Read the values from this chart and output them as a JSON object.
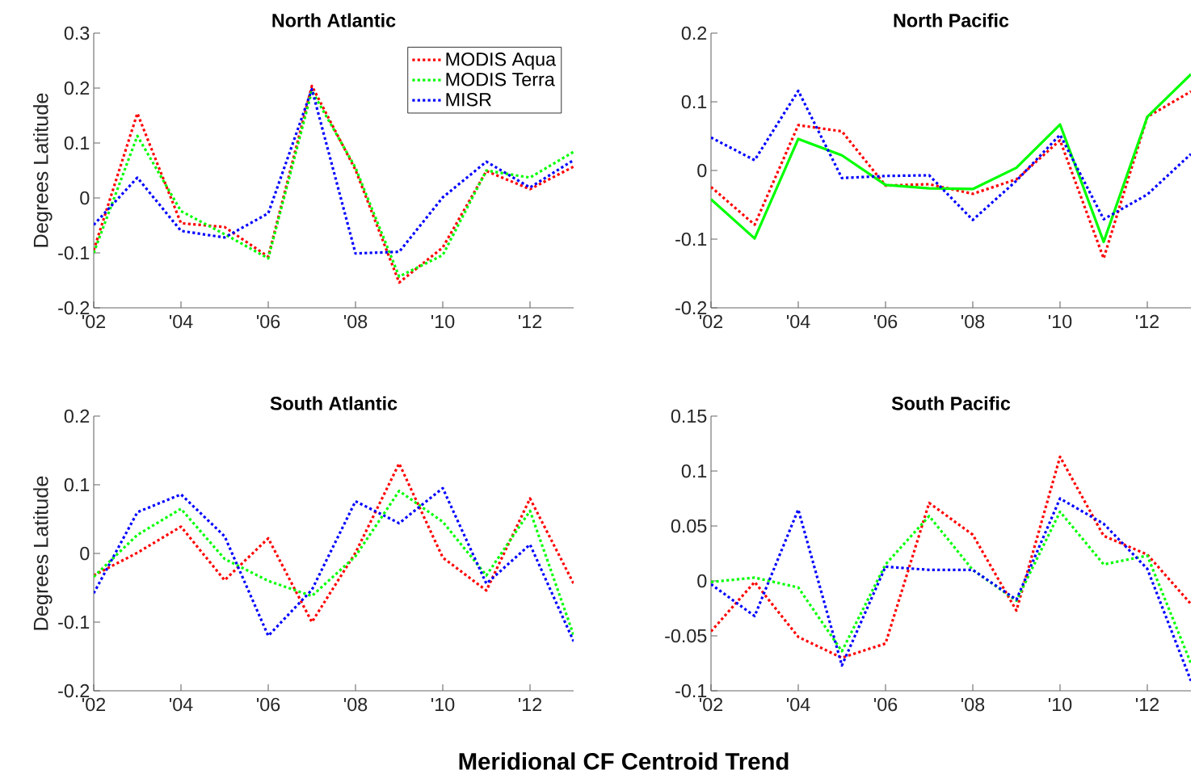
{
  "chart_data": [
    {
      "type": "line",
      "title": "North Atlantic",
      "ylabel": "Degrees Latitude",
      "x": [
        2002,
        2003,
        2004,
        2005,
        2006,
        2007,
        2008,
        2009,
        2010,
        2011,
        2012,
        2013
      ],
      "xlim": [
        2002,
        2013
      ],
      "xticks": [
        {
          "value": 2002,
          "label": "'02"
        },
        {
          "value": 2004,
          "label": "'04"
        },
        {
          "value": 2006,
          "label": "'06"
        },
        {
          "value": 2008,
          "label": "'08"
        },
        {
          "value": 2010,
          "label": "'10"
        },
        {
          "value": 2012,
          "label": "'12"
        }
      ],
      "ylim": [
        -0.2,
        0.3
      ],
      "yticks": [
        -0.2,
        -0.1,
        0,
        0.1,
        0.2,
        0.3
      ],
      "legend": "top right",
      "line_style": "dotted",
      "annotations": [
        "Meridional CF Centroid Trend"
      ],
      "series": [
        {
          "name": "MODIS Aqua",
          "color": "#ff0000",
          "values": [
            -0.095,
            0.154,
            -0.046,
            -0.053,
            -0.107,
            0.204,
            0.051,
            -0.154,
            -0.09,
            0.049,
            0.016,
            0.057
          ]
        },
        {
          "name": "MODIS Terra",
          "color": "#00ff00",
          "values": [
            -0.1,
            0.113,
            -0.024,
            -0.066,
            -0.11,
            0.195,
            0.055,
            -0.143,
            -0.104,
            0.05,
            0.037,
            0.084
          ]
        },
        {
          "name": "MISR",
          "color": "#0000ff",
          "values": [
            -0.049,
            0.037,
            -0.06,
            -0.072,
            -0.028,
            0.198,
            -0.101,
            -0.098,
            0.001,
            0.066,
            0.019,
            0.069
          ]
        }
      ]
    },
    {
      "type": "line",
      "title": "North Pacific",
      "x": [
        2002,
        2003,
        2004,
        2005,
        2006,
        2007,
        2008,
        2009,
        2010,
        2011,
        2012,
        2013
      ],
      "xlim": [
        2002,
        2013
      ],
      "xticks": [
        {
          "value": 2002,
          "label": "'02"
        },
        {
          "value": 2004,
          "label": "'04"
        },
        {
          "value": 2006,
          "label": "'06"
        },
        {
          "value": 2008,
          "label": "'08"
        },
        {
          "value": 2010,
          "label": "'10"
        },
        {
          "value": 2012,
          "label": "'12"
        }
      ],
      "ylim": [
        -0.2,
        0.2
      ],
      "yticks": [
        -0.2,
        -0.1,
        0,
        0.1,
        0.2
      ],
      "line_style": "dotted",
      "series": [
        {
          "color": "#ff0000",
          "values": [
            -0.024,
            -0.079,
            0.066,
            0.057,
            -0.022,
            -0.02,
            -0.034,
            -0.013,
            0.044,
            -0.128,
            0.078,
            0.115
          ]
        },
        {
          "color": "#00ff00",
          "line_style": "solid",
          "values": [
            -0.042,
            -0.099,
            0.046,
            0.022,
            -0.021,
            -0.026,
            -0.027,
            0.004,
            0.067,
            -0.104,
            0.078,
            0.14
          ]
        },
        {
          "color": "#0000ff",
          "values": [
            0.048,
            0.015,
            0.116,
            -0.011,
            -0.008,
            -0.007,
            -0.072,
            -0.015,
            0.052,
            -0.071,
            -0.035,
            0.024
          ]
        }
      ]
    },
    {
      "type": "line",
      "title": "South Atlantic",
      "ylabel": "Degrees Latitude",
      "x": [
        2002,
        2003,
        2004,
        2005,
        2006,
        2007,
        2008,
        2009,
        2010,
        2011,
        2012,
        2013
      ],
      "xlim": [
        2002,
        2013
      ],
      "xticks": [
        {
          "value": 2002,
          "label": "'02"
        },
        {
          "value": 2004,
          "label": "'04"
        },
        {
          "value": 2006,
          "label": "'06"
        },
        {
          "value": 2008,
          "label": "'08"
        },
        {
          "value": 2010,
          "label": "'10"
        },
        {
          "value": 2012,
          "label": "'12"
        }
      ],
      "ylim": [
        -0.2,
        0.2
      ],
      "yticks": [
        -0.2,
        -0.1,
        0,
        0.1,
        0.2
      ],
      "line_style": "dotted",
      "series": [
        {
          "color": "#ff0000",
          "values": [
            -0.032,
            0.001,
            0.039,
            -0.039,
            0.022,
            -0.1,
            0.001,
            0.131,
            -0.006,
            -0.054,
            0.08,
            -0.044
          ]
        },
        {
          "color": "#00ff00",
          "values": [
            -0.034,
            0.027,
            0.065,
            -0.008,
            -0.04,
            -0.062,
            -0.004,
            0.091,
            0.046,
            -0.032,
            0.062,
            -0.119
          ]
        },
        {
          "color": "#0000ff",
          "values": [
            -0.058,
            0.06,
            0.086,
            0.025,
            -0.12,
            -0.053,
            0.076,
            0.044,
            0.095,
            -0.044,
            0.013,
            -0.128
          ]
        }
      ]
    },
    {
      "type": "line",
      "title": "South Pacific",
      "x": [
        2002,
        2003,
        2004,
        2005,
        2006,
        2007,
        2008,
        2009,
        2010,
        2011,
        2012,
        2013
      ],
      "xlim": [
        2002,
        2013
      ],
      "xticks": [
        {
          "value": 2002,
          "label": "'02"
        },
        {
          "value": 2004,
          "label": "'04"
        },
        {
          "value": 2006,
          "label": "'06"
        },
        {
          "value": 2008,
          "label": "'08"
        },
        {
          "value": 2010,
          "label": "'10"
        },
        {
          "value": 2012,
          "label": "'12"
        }
      ],
      "ylim": [
        -0.1,
        0.15
      ],
      "yticks": [
        -0.1,
        -0.05,
        0,
        0.05,
        0.1,
        0.15
      ],
      "line_style": "dotted",
      "series": [
        {
          "color": "#ff0000",
          "values": [
            -0.046,
            -0.001,
            -0.051,
            -0.07,
            -0.057,
            0.071,
            0.042,
            -0.027,
            0.113,
            0.041,
            0.024,
            -0.021
          ]
        },
        {
          "color": "#00ff00",
          "values": [
            -0.001,
            0.003,
            -0.006,
            -0.064,
            0.015,
            0.059,
            0.01,
            -0.018,
            0.063,
            0.015,
            0.023,
            -0.075
          ]
        },
        {
          "color": "#0000ff",
          "values": [
            -0.003,
            -0.032,
            0.065,
            -0.077,
            0.013,
            0.01,
            0.01,
            -0.017,
            0.075,
            0.052,
            0.011,
            -0.091
          ]
        }
      ]
    }
  ]
}
